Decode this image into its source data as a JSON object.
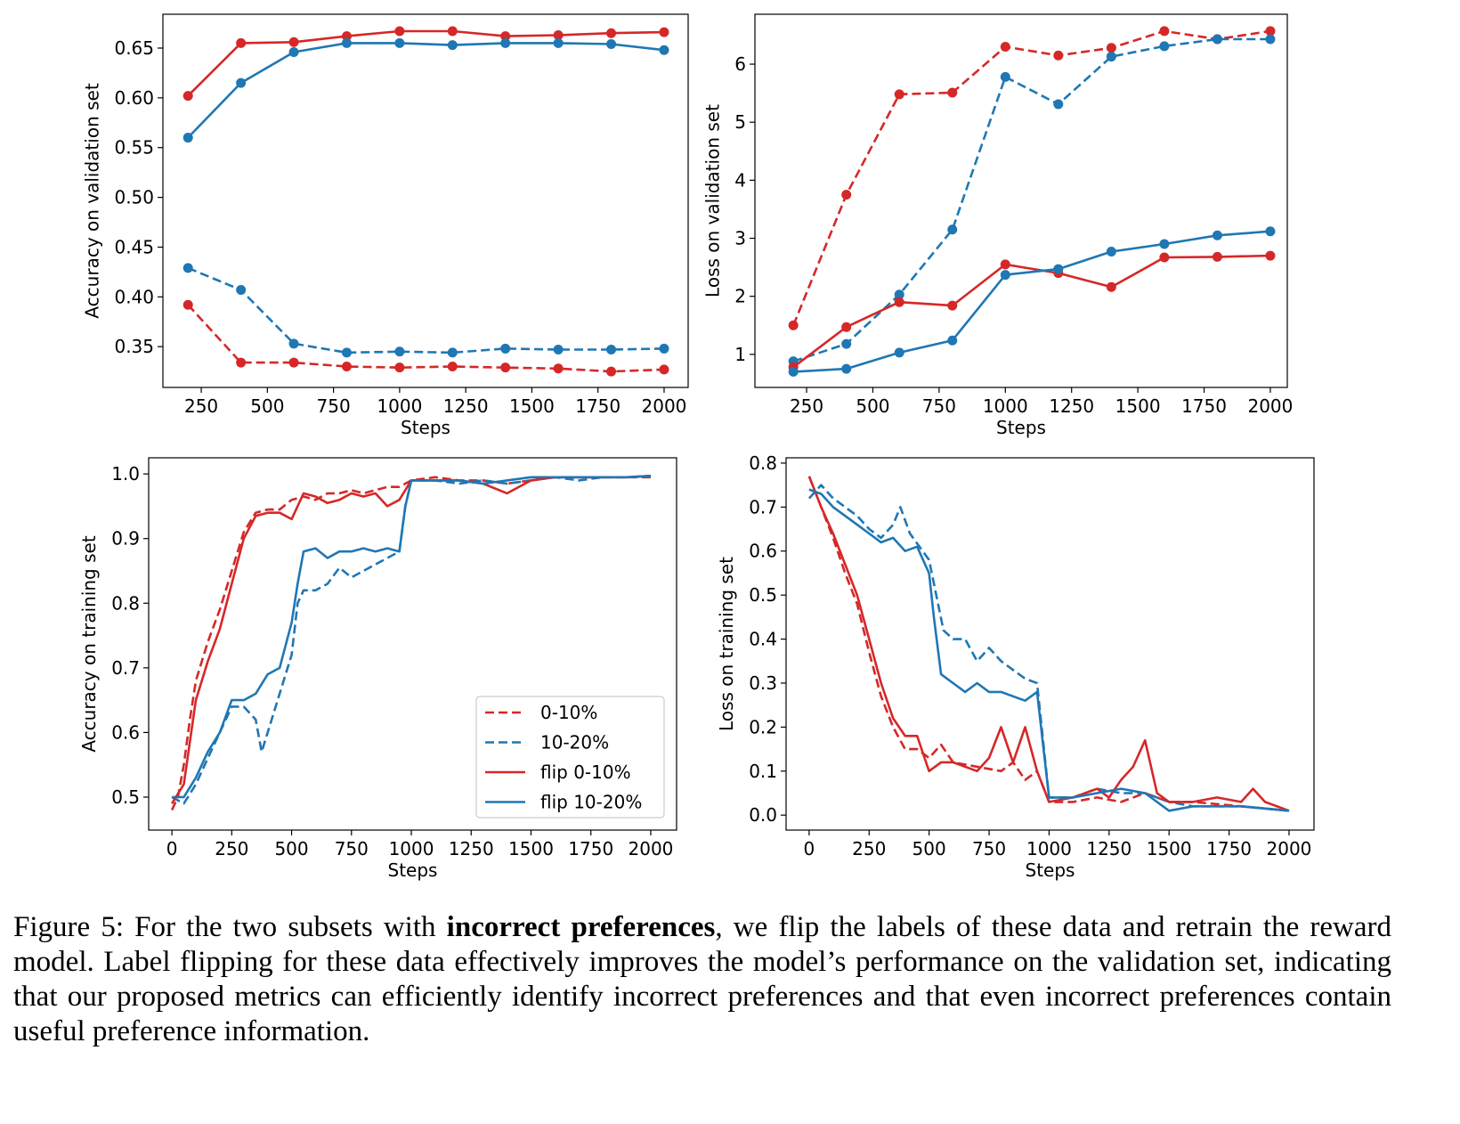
{
  "colors": {
    "red": "#d62728",
    "blue": "#1f77b4"
  },
  "chart_data": [
    {
      "id": "val-acc",
      "type": "line",
      "xlabel": "Steps",
      "ylabel": "Accuracy on validation set",
      "xlim": [
        105,
        2091
      ],
      "ylim": [
        0.309,
        0.684
      ],
      "xticks": [
        250,
        500,
        750,
        1000,
        1250,
        1500,
        1750,
        2000
      ],
      "yticks": [
        0.35,
        0.4,
        0.45,
        0.5,
        0.55,
        0.6,
        0.65
      ],
      "ytick_decimals": 2,
      "markers": true,
      "x": [
        200,
        400,
        600,
        800,
        1000,
        1200,
        1400,
        1600,
        1800,
        2000
      ],
      "series": [
        {
          "name": "0-10%",
          "color": "red",
          "dash": true,
          "values": [
            0.392,
            0.334,
            0.334,
            0.33,
            0.329,
            0.33,
            0.329,
            0.328,
            0.325,
            0.327
          ]
        },
        {
          "name": "10-20%",
          "color": "blue",
          "dash": true,
          "values": [
            0.429,
            0.407,
            0.353,
            0.344,
            0.345,
            0.344,
            0.348,
            0.347,
            0.347,
            0.348
          ]
        },
        {
          "name": "flip 0-10%",
          "color": "red",
          "dash": false,
          "values": [
            0.602,
            0.655,
            0.656,
            0.662,
            0.667,
            0.667,
            0.662,
            0.663,
            0.665,
            0.666
          ]
        },
        {
          "name": "flip 10-20%",
          "color": "blue",
          "dash": false,
          "values": [
            0.56,
            0.615,
            0.646,
            0.655,
            0.655,
            0.653,
            0.655,
            0.655,
            0.654,
            0.648
          ]
        }
      ]
    },
    {
      "id": "val-loss",
      "type": "line",
      "xlabel": "Steps",
      "ylabel": "Loss on validation set",
      "xlim": [
        55,
        2064
      ],
      "ylim": [
        0.43,
        6.86
      ],
      "xticks": [
        250,
        500,
        750,
        1000,
        1250,
        1500,
        1750,
        2000
      ],
      "yticks": [
        1,
        2,
        3,
        4,
        5,
        6
      ],
      "ytick_decimals": 0,
      "markers": true,
      "x": [
        200,
        400,
        600,
        800,
        1000,
        1200,
        1400,
        1600,
        1800,
        2000
      ],
      "series": [
        {
          "name": "0-10%",
          "color": "red",
          "dash": true,
          "values": [
            1.5,
            3.75,
            5.48,
            5.51,
            6.3,
            6.15,
            6.28,
            6.57,
            6.43,
            6.57
          ]
        },
        {
          "name": "10-20%",
          "color": "blue",
          "dash": true,
          "values": [
            0.88,
            1.18,
            2.03,
            3.15,
            5.78,
            5.31,
            6.13,
            6.31,
            6.43,
            6.43
          ]
        },
        {
          "name": "flip 0-10%",
          "color": "red",
          "dash": false,
          "values": [
            0.78,
            1.47,
            1.9,
            1.84,
            2.55,
            2.4,
            2.16,
            2.67,
            2.68,
            2.7
          ]
        },
        {
          "name": "flip 10-20%",
          "color": "blue",
          "dash": false,
          "values": [
            0.7,
            0.75,
            1.03,
            1.24,
            2.37,
            2.47,
            2.77,
            2.9,
            3.05,
            3.12
          ]
        }
      ]
    },
    {
      "id": "train-acc",
      "type": "line",
      "xlabel": "Steps",
      "ylabel": "Accuracy on training set",
      "xlim": [
        -97,
        2108
      ],
      "ylim": [
        0.449,
        1.025
      ],
      "xticks": [
        0,
        250,
        500,
        750,
        1000,
        1250,
        1500,
        1750,
        2000
      ],
      "yticks": [
        0.5,
        0.6,
        0.7,
        0.8,
        0.9,
        1.0
      ],
      "ytick_decimals": 1,
      "markers": false,
      "legend": {
        "placement": "lower-right",
        "entries": [
          "0-10%",
          "10-20%",
          "flip 0-10%",
          "flip 10-20%"
        ]
      },
      "series": [
        {
          "name": "0-10%",
          "color": "red",
          "dash": true,
          "x": [
            0,
            25,
            50,
            75,
            100,
            150,
            200,
            250,
            300,
            350,
            400,
            450,
            500,
            550,
            600,
            650,
            700,
            750,
            800,
            850,
            900,
            950,
            1000,
            1100,
            1200,
            1300,
            1400,
            1500,
            1600,
            1700,
            1800,
            1900,
            2000
          ],
          "values": [
            0.48,
            0.5,
            0.55,
            0.62,
            0.68,
            0.74,
            0.79,
            0.85,
            0.91,
            0.94,
            0.945,
            0.945,
            0.96,
            0.965,
            0.96,
            0.97,
            0.97,
            0.975,
            0.97,
            0.975,
            0.98,
            0.98,
            0.99,
            0.995,
            0.99,
            0.99,
            0.985,
            0.99,
            0.995,
            0.995,
            0.995,
            0.995,
            0.995
          ]
        },
        {
          "name": "10-20%",
          "color": "blue",
          "dash": true,
          "x": [
            0,
            50,
            100,
            150,
            200,
            250,
            300,
            350,
            375,
            400,
            450,
            500,
            525,
            550,
            600,
            650,
            700,
            750,
            800,
            850,
            900,
            950,
            975,
            1000,
            1100,
            1200,
            1300,
            1400,
            1500,
            1600,
            1700,
            1800,
            1900,
            2000
          ],
          "values": [
            0.5,
            0.49,
            0.52,
            0.56,
            0.6,
            0.64,
            0.64,
            0.62,
            0.57,
            0.6,
            0.66,
            0.72,
            0.8,
            0.82,
            0.82,
            0.83,
            0.855,
            0.84,
            0.85,
            0.86,
            0.87,
            0.88,
            0.95,
            0.99,
            0.99,
            0.985,
            0.99,
            0.985,
            0.99,
            0.995,
            0.99,
            0.995,
            0.995,
            0.997
          ]
        },
        {
          "name": "flip 0-10%",
          "color": "red",
          "dash": false,
          "x": [
            0,
            50,
            100,
            150,
            200,
            250,
            300,
            350,
            400,
            450,
            500,
            550,
            600,
            650,
            700,
            750,
            800,
            850,
            900,
            950,
            1000,
            1100,
            1200,
            1300,
            1400,
            1500,
            1600,
            1700,
            1800,
            1900,
            2000
          ],
          "values": [
            0.49,
            0.52,
            0.65,
            0.71,
            0.76,
            0.83,
            0.9,
            0.935,
            0.94,
            0.94,
            0.93,
            0.97,
            0.965,
            0.955,
            0.96,
            0.97,
            0.965,
            0.97,
            0.95,
            0.96,
            0.99,
            0.99,
            0.99,
            0.985,
            0.97,
            0.99,
            0.995,
            0.995,
            0.995,
            0.995,
            0.997
          ]
        },
        {
          "name": "flip 10-20%",
          "color": "blue",
          "dash": false,
          "x": [
            0,
            50,
            100,
            150,
            200,
            250,
            300,
            350,
            400,
            450,
            500,
            525,
            550,
            600,
            650,
            700,
            750,
            800,
            850,
            900,
            950,
            975,
            1000,
            1100,
            1200,
            1300,
            1400,
            1500,
            1600,
            1700,
            1800,
            1900,
            2000
          ],
          "values": [
            0.5,
            0.5,
            0.53,
            0.57,
            0.6,
            0.65,
            0.65,
            0.66,
            0.69,
            0.7,
            0.77,
            0.83,
            0.88,
            0.885,
            0.87,
            0.88,
            0.88,
            0.885,
            0.88,
            0.885,
            0.88,
            0.95,
            0.99,
            0.99,
            0.99,
            0.985,
            0.99,
            0.995,
            0.995,
            0.995,
            0.995,
            0.995,
            0.997
          ]
        }
      ]
    },
    {
      "id": "train-loss",
      "type": "line",
      "xlabel": "Steps",
      "ylabel": "Loss on training set",
      "xlim": [
        -96,
        2104
      ],
      "ylim": [
        -0.034,
        0.812
      ],
      "xticks": [
        0,
        250,
        500,
        750,
        1000,
        1250,
        1500,
        1750,
        2000
      ],
      "yticks": [
        0.0,
        0.1,
        0.2,
        0.3,
        0.4,
        0.5,
        0.6,
        0.7,
        0.8
      ],
      "ytick_decimals": 1,
      "markers": false,
      "series": [
        {
          "name": "0-10%",
          "color": "red",
          "dash": true,
          "x": [
            0,
            50,
            100,
            150,
            200,
            250,
            300,
            350,
            400,
            450,
            500,
            550,
            600,
            700,
            800,
            850,
            900,
            950,
            1000,
            1100,
            1200,
            1300,
            1400,
            1500,
            1600,
            1800,
            2000
          ],
          "values": [
            0.77,
            0.7,
            0.63,
            0.55,
            0.48,
            0.37,
            0.27,
            0.2,
            0.15,
            0.15,
            0.13,
            0.16,
            0.12,
            0.11,
            0.1,
            0.12,
            0.08,
            0.1,
            0.03,
            0.03,
            0.04,
            0.03,
            0.05,
            0.03,
            0.03,
            0.02,
            0.01
          ]
        },
        {
          "name": "10-20%",
          "color": "blue",
          "dash": true,
          "x": [
            0,
            50,
            100,
            150,
            200,
            250,
            300,
            350,
            380,
            420,
            500,
            530,
            560,
            600,
            650,
            700,
            750,
            800,
            850,
            900,
            950,
            1000,
            1100,
            1200,
            1300,
            1400,
            1500,
            1600,
            1800,
            2000
          ],
          "values": [
            0.72,
            0.75,
            0.72,
            0.7,
            0.68,
            0.65,
            0.63,
            0.66,
            0.7,
            0.64,
            0.58,
            0.5,
            0.42,
            0.4,
            0.4,
            0.35,
            0.38,
            0.35,
            0.33,
            0.31,
            0.3,
            0.04,
            0.04,
            0.06,
            0.05,
            0.05,
            0.03,
            0.02,
            0.02,
            0.01
          ]
        },
        {
          "name": "flip 0-10%",
          "color": "red",
          "dash": false,
          "x": [
            0,
            50,
            100,
            150,
            200,
            250,
            300,
            350,
            400,
            450,
            500,
            550,
            600,
            700,
            750,
            800,
            850,
            900,
            950,
            1000,
            1100,
            1200,
            1250,
            1300,
            1350,
            1400,
            1450,
            1500,
            1600,
            1700,
            1800,
            1850,
            1900,
            2000
          ],
          "values": [
            0.77,
            0.7,
            0.64,
            0.57,
            0.5,
            0.4,
            0.3,
            0.22,
            0.18,
            0.18,
            0.1,
            0.12,
            0.12,
            0.1,
            0.13,
            0.2,
            0.12,
            0.2,
            0.1,
            0.03,
            0.04,
            0.06,
            0.04,
            0.08,
            0.11,
            0.17,
            0.05,
            0.03,
            0.03,
            0.04,
            0.03,
            0.06,
            0.03,
            0.01
          ]
        },
        {
          "name": "flip 10-20%",
          "color": "blue",
          "dash": false,
          "x": [
            0,
            50,
            100,
            150,
            200,
            250,
            300,
            350,
            400,
            450,
            500,
            520,
            550,
            600,
            650,
            700,
            750,
            800,
            850,
            900,
            950,
            1000,
            1100,
            1200,
            1300,
            1400,
            1500,
            1600,
            1800,
            2000
          ],
          "values": [
            0.74,
            0.73,
            0.7,
            0.68,
            0.66,
            0.64,
            0.62,
            0.63,
            0.6,
            0.61,
            0.55,
            0.45,
            0.32,
            0.3,
            0.28,
            0.3,
            0.28,
            0.28,
            0.27,
            0.26,
            0.28,
            0.04,
            0.04,
            0.05,
            0.06,
            0.05,
            0.01,
            0.02,
            0.02,
            0.01
          ]
        }
      ]
    }
  ],
  "caption": {
    "prefix": "Figure 5: For the two subsets with ",
    "bold": "incorrect preferences",
    "suffix": ", we flip the labels of these data and retrain the reward model. Label flipping for these data effectively improves the model’s performance on the validation set, indicating that our proposed metrics can efficiently identify incorrect preferences and that even incorrect preferences contain useful preference information."
  }
}
